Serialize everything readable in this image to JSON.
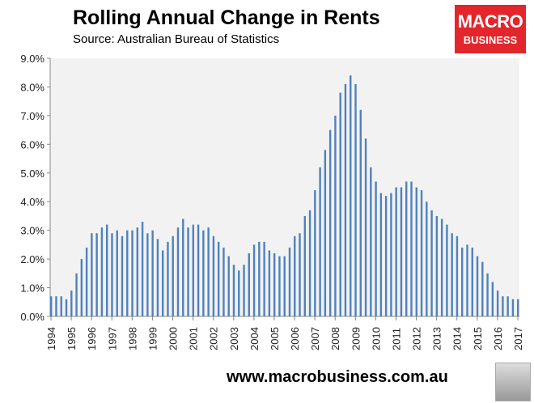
{
  "header": {
    "title": "Rolling Annual Change in Rents",
    "subtitle": "Source: Australian Bureau of Statistics"
  },
  "logo": {
    "line1": "MACRO",
    "line2": "BUSINESS",
    "color": "#e3262c"
  },
  "footer": {
    "url": "www.macrobusiness.com.au"
  },
  "chart_data": {
    "type": "bar",
    "title": "Rolling Annual Change in Rents",
    "subtitle": "Source: Australian Bureau of Statistics",
    "frequency": "quarterly",
    "start": "1994",
    "bar_color": "#4f81bd",
    "background": "#f2f2f2",
    "ylim": [
      0,
      9
    ],
    "y_ticks": [
      "0.0%",
      "1.0%",
      "2.0%",
      "3.0%",
      "4.0%",
      "5.0%",
      "6.0%",
      "7.0%",
      "8.0%",
      "9.0%"
    ],
    "x_ticks": [
      "1994",
      "1995",
      "1996",
      "1997",
      "1998",
      "1999",
      "2000",
      "2001",
      "2002",
      "2003",
      "2004",
      "2005",
      "2006",
      "2007",
      "2008",
      "2009",
      "2010",
      "2011",
      "2012",
      "2013",
      "2014",
      "2015",
      "2016",
      "2017"
    ],
    "grid": false,
    "values": [
      0.7,
      0.7,
      0.7,
      0.6,
      0.9,
      1.5,
      2.0,
      2.4,
      2.9,
      2.9,
      3.1,
      3.2,
      2.9,
      3.0,
      2.8,
      3.0,
      3.0,
      3.1,
      3.3,
      2.9,
      3.0,
      2.7,
      2.3,
      2.6,
      2.8,
      3.1,
      3.4,
      3.1,
      3.2,
      3.2,
      3.0,
      3.1,
      2.8,
      2.6,
      2.4,
      2.1,
      1.8,
      1.6,
      1.8,
      2.2,
      2.5,
      2.6,
      2.6,
      2.3,
      2.2,
      2.1,
      2.1,
      2.4,
      2.8,
      2.9,
      3.5,
      3.7,
      4.4,
      5.2,
      5.8,
      6.5,
      7.0,
      7.8,
      8.1,
      8.4,
      8.1,
      7.2,
      6.2,
      5.2,
      4.7,
      4.3,
      4.2,
      4.3,
      4.5,
      4.5,
      4.7,
      4.7,
      4.5,
      4.4,
      4.0,
      3.7,
      3.5,
      3.4,
      3.2,
      2.9,
      2.8,
      2.4,
      2.5,
      2.4,
      2.1,
      1.9,
      1.5,
      1.2,
      0.9,
      0.7,
      0.7,
      0.6,
      0.6
    ]
  }
}
